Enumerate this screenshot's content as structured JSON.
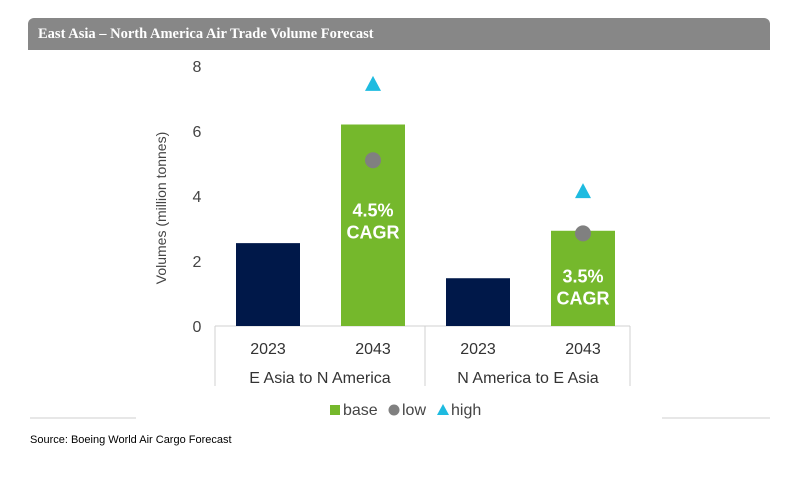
{
  "header": {
    "title": "East Asia – North America Air Trade Volume Forecast"
  },
  "source": "Source: Boeing World Air Cargo Forecast",
  "colors": {
    "base_2023": "#001849",
    "base_2043": "#75b82c",
    "low": "#808080",
    "high": "#1ebbe0"
  },
  "chart_data": {
    "type": "bar",
    "ylabel": "Volumes (million tonnes)",
    "ylim": [
      0,
      8
    ],
    "yticks": [
      0,
      2,
      4,
      6,
      8
    ],
    "groups": [
      "E Asia to N America",
      "N America to E Asia"
    ],
    "categories": [
      "2023",
      "2043",
      "2023",
      "2043"
    ],
    "series": [
      {
        "name": "base",
        "values": [
          2.55,
          6.2,
          1.47,
          2.93
        ]
      },
      {
        "name": "low",
        "values": [
          null,
          5.1,
          null,
          2.85
        ]
      },
      {
        "name": "high",
        "values": [
          null,
          7.45,
          null,
          4.15
        ]
      }
    ],
    "annotations": [
      {
        "bar": 1,
        "line1": "4.5%",
        "line2": "CAGR"
      },
      {
        "bar": 3,
        "line1": "3.5%",
        "line2": "CAGR"
      }
    ],
    "legend": {
      "position": "bottom",
      "items": [
        "base",
        "low",
        "high"
      ]
    }
  }
}
